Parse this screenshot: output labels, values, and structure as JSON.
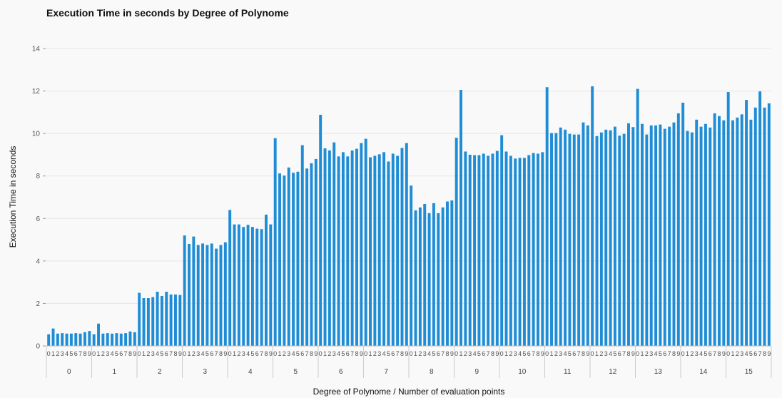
{
  "chart_data": {
    "type": "bar",
    "title": "Execution Time in seconds by Degree of Polynome",
    "xlabel": "Degree of Polynome / Number of evaluation points",
    "ylabel": "Execution Time in seconds",
    "ylim": [
      0,
      14
    ],
    "yticks": [
      0,
      2,
      4,
      6,
      8,
      10,
      12,
      14
    ],
    "grid": true,
    "color": "#1f8dd6",
    "groups": [
      {
        "label": "0",
        "categories": [
          "0",
          "1",
          "2",
          "3",
          "4",
          "5",
          "6",
          "7",
          "8",
          "9"
        ],
        "values": [
          0.55,
          0.82,
          0.58,
          0.6,
          0.58,
          0.58,
          0.6,
          0.58,
          0.65,
          0.7
        ]
      },
      {
        "label": "1",
        "categories": [
          "0",
          "1",
          "2",
          "3",
          "4",
          "5",
          "6",
          "7",
          "8",
          "9"
        ],
        "values": [
          0.55,
          1.05,
          0.58,
          0.6,
          0.58,
          0.6,
          0.58,
          0.6,
          0.68,
          0.65
        ]
      },
      {
        "label": "2",
        "categories": [
          "0",
          "1",
          "2",
          "3",
          "4",
          "5",
          "6",
          "7",
          "8",
          "9"
        ],
        "values": [
          2.5,
          2.25,
          2.25,
          2.3,
          2.55,
          2.35,
          2.55,
          2.42,
          2.42,
          2.4
        ]
      },
      {
        "label": "3",
        "categories": [
          "0",
          "1",
          "2",
          "3",
          "4",
          "5",
          "6",
          "7",
          "8",
          "9"
        ],
        "values": [
          5.2,
          4.8,
          5.15,
          4.75,
          4.82,
          4.75,
          4.82,
          4.58,
          4.75,
          4.88
        ]
      },
      {
        "label": "4",
        "categories": [
          "0",
          "1",
          "2",
          "3",
          "4",
          "5",
          "6",
          "7",
          "8",
          "9"
        ],
        "values": [
          6.4,
          5.72,
          5.72,
          5.6,
          5.7,
          5.6,
          5.52,
          5.5,
          6.18,
          5.72
        ]
      },
      {
        "label": "5",
        "categories": [
          "0",
          "1",
          "2",
          "3",
          "4",
          "5",
          "6",
          "7",
          "8",
          "9"
        ],
        "values": [
          9.78,
          8.12,
          8.02,
          8.4,
          8.15,
          8.2,
          9.45,
          8.35,
          8.6,
          8.8
        ]
      },
      {
        "label": "6",
        "categories": [
          "0",
          "1",
          "2",
          "3",
          "4",
          "5",
          "6",
          "7",
          "8",
          "9"
        ],
        "values": [
          10.88,
          9.3,
          9.2,
          9.58,
          8.92,
          9.12,
          8.92,
          9.2,
          9.28,
          9.55
        ]
      },
      {
        "label": "7",
        "categories": [
          "0",
          "1",
          "2",
          "3",
          "4",
          "5",
          "6",
          "7",
          "8",
          "9"
        ],
        "values": [
          9.75,
          8.88,
          8.95,
          9.02,
          9.12,
          8.68,
          9.05,
          8.95,
          9.32,
          9.55
        ]
      },
      {
        "label": "8",
        "categories": [
          "0",
          "1",
          "2",
          "3",
          "4",
          "5",
          "6",
          "7",
          "8",
          "9"
        ],
        "values": [
          7.55,
          6.38,
          6.52,
          6.68,
          6.25,
          6.72,
          6.25,
          6.52,
          6.8,
          6.85
        ]
      },
      {
        "label": "9",
        "categories": [
          "0",
          "1",
          "2",
          "3",
          "4",
          "5",
          "6",
          "7",
          "8",
          "9"
        ],
        "values": [
          9.8,
          12.05,
          9.15,
          9.0,
          8.98,
          8.98,
          9.05,
          8.95,
          9.05,
          9.18
        ]
      },
      {
        "label": "10",
        "categories": [
          "0",
          "1",
          "2",
          "3",
          "4",
          "5",
          "6",
          "7",
          "8",
          "9"
        ],
        "values": [
          9.92,
          9.15,
          8.95,
          8.82,
          8.85,
          8.85,
          8.98,
          9.08,
          9.05,
          9.12
        ]
      },
      {
        "label": "11",
        "categories": [
          "0",
          "1",
          "2",
          "3",
          "4",
          "5",
          "6",
          "7",
          "8",
          "9"
        ],
        "values": [
          12.18,
          10.02,
          10.02,
          10.28,
          10.18,
          9.98,
          9.95,
          9.95,
          10.52,
          10.38
        ]
      },
      {
        "label": "12",
        "categories": [
          "0",
          "1",
          "2",
          "3",
          "4",
          "5",
          "6",
          "7",
          "8",
          "9"
        ],
        "values": [
          12.22,
          9.88,
          10.05,
          10.18,
          10.15,
          10.32,
          9.9,
          9.98,
          10.48,
          10.3
        ]
      },
      {
        "label": "13",
        "categories": [
          "0",
          "1",
          "2",
          "3",
          "4",
          "5",
          "6",
          "7",
          "8",
          "9"
        ],
        "values": [
          12.1,
          10.45,
          9.95,
          10.38,
          10.38,
          10.42,
          10.22,
          10.32,
          10.52,
          10.95
        ]
      },
      {
        "label": "14",
        "categories": [
          "0",
          "1",
          "2",
          "3",
          "4",
          "5",
          "6",
          "7",
          "8",
          "9"
        ],
        "values": [
          11.45,
          10.12,
          10.05,
          10.65,
          10.32,
          10.45,
          10.28,
          10.95,
          10.82,
          10.62
        ]
      },
      {
        "label": "15",
        "categories": [
          "0",
          "1",
          "2",
          "3",
          "4",
          "5",
          "6",
          "7",
          "8",
          "9"
        ],
        "values": [
          11.95,
          10.62,
          10.75,
          10.9,
          11.58,
          10.65,
          11.22,
          11.98,
          11.22,
          11.42
        ]
      }
    ]
  }
}
